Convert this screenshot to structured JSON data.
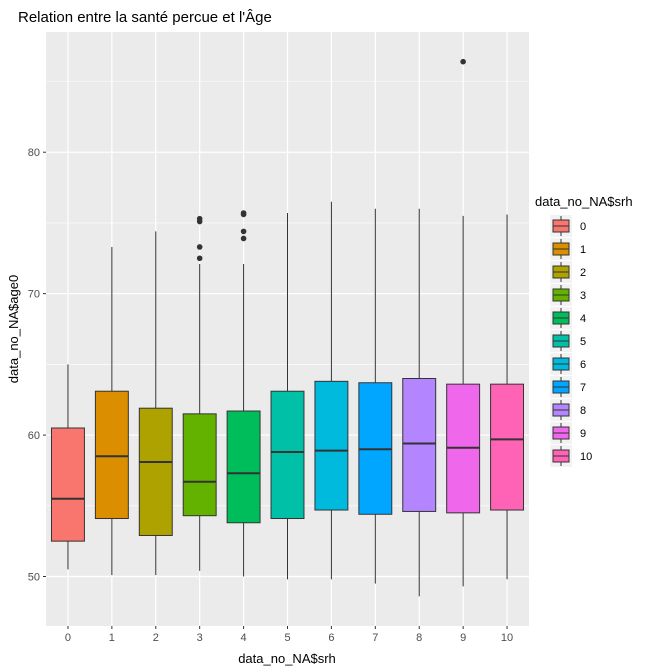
{
  "chart_data": {
    "type": "boxplot",
    "title": "Relation entre la santé percue et l'Âge",
    "xlabel": "data_no_NA$srh",
    "ylabel": "data_no_NA$age0",
    "ylim": [
      46.5,
      88.5
    ],
    "y_ticks": [
      "50",
      "60",
      "70",
      "80"
    ],
    "grid": true,
    "legend": {
      "title": "data_no_NA$srh",
      "position": "right"
    },
    "categories": [
      "0",
      "1",
      "2",
      "3",
      "4",
      "5",
      "6",
      "7",
      "8",
      "9",
      "10"
    ],
    "colors": [
      "#F8766D",
      "#DB8E00",
      "#AEA200",
      "#64B200",
      "#00BD5C",
      "#00C1A7",
      "#00BADE",
      "#00A6FF",
      "#B385FF",
      "#EF67EB",
      "#FF63B6"
    ],
    "boxes": [
      {
        "category": "0",
        "whisker_low": 50.5,
        "q1": 52.5,
        "median": 55.5,
        "q3": 60.5,
        "whisker_high": 65.0,
        "outliers": []
      },
      {
        "category": "1",
        "whisker_low": 50.1,
        "q1": 54.1,
        "median": 58.5,
        "q3": 63.1,
        "whisker_high": 73.3,
        "outliers": []
      },
      {
        "category": "2",
        "whisker_low": 50.1,
        "q1": 52.9,
        "median": 58.1,
        "q3": 61.9,
        "whisker_high": 74.4,
        "outliers": []
      },
      {
        "category": "3",
        "whisker_low": 50.4,
        "q1": 54.3,
        "median": 56.7,
        "q3": 61.5,
        "whisker_high": 72.1,
        "outliers": [
          72.5,
          73.3,
          75.1,
          75.3
        ]
      },
      {
        "category": "4",
        "whisker_low": 50.0,
        "q1": 53.8,
        "median": 57.3,
        "q3": 61.7,
        "whisker_high": 72.1,
        "outliers": [
          73.9,
          74.4,
          75.6,
          75.7
        ]
      },
      {
        "category": "5",
        "whisker_low": 49.8,
        "q1": 54.1,
        "median": 58.8,
        "q3": 63.1,
        "whisker_high": 75.7,
        "outliers": []
      },
      {
        "category": "6",
        "whisker_low": 49.8,
        "q1": 54.7,
        "median": 58.9,
        "q3": 63.8,
        "whisker_high": 76.5,
        "outliers": []
      },
      {
        "category": "7",
        "whisker_low": 49.5,
        "q1": 54.4,
        "median": 59.0,
        "q3": 63.7,
        "whisker_high": 76.0,
        "outliers": []
      },
      {
        "category": "8",
        "whisker_low": 48.6,
        "q1": 54.6,
        "median": 59.4,
        "q3": 64.0,
        "whisker_high": 76.0,
        "outliers": []
      },
      {
        "category": "9",
        "whisker_low": 49.3,
        "q1": 54.5,
        "median": 59.1,
        "q3": 63.6,
        "whisker_high": 75.5,
        "outliers": [
          86.4
        ]
      },
      {
        "category": "10",
        "whisker_low": 49.8,
        "q1": 54.7,
        "median": 59.7,
        "q3": 63.6,
        "whisker_high": 75.6,
        "outliers": []
      }
    ]
  }
}
